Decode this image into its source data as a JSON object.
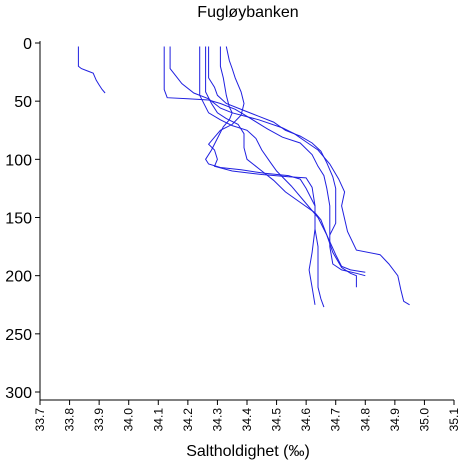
{
  "chart_data": {
    "type": "line",
    "title": "Fugløybanken",
    "xlabel": "Saltholdighet (‰)",
    "ylabel": "",
    "xlim": [
      33.7,
      35.1
    ],
    "ylim": [
      0,
      300
    ],
    "y_inverted": true,
    "x_ticks": [
      "33.7",
      "33.8",
      "33.9",
      "34.0",
      "34.1",
      "34.2",
      "34.3",
      "34.4",
      "34.5",
      "34.6",
      "34.7",
      "34.8",
      "34.9",
      "35.0",
      "35.1"
    ],
    "y_ticks": [
      "0",
      "50",
      "100",
      "150",
      "200",
      "250",
      "300"
    ],
    "line_color": "#2020e0",
    "series": [
      {
        "points": [
          [
            33.83,
            3
          ],
          [
            33.83,
            20
          ],
          [
            33.84,
            22
          ],
          [
            33.86,
            24
          ],
          [
            33.88,
            26
          ],
          [
            33.89,
            32
          ],
          [
            33.9,
            36
          ],
          [
            33.91,
            40
          ],
          [
            33.92,
            43
          ]
        ]
      },
      {
        "points": [
          [
            34.12,
            3
          ],
          [
            34.12,
            40
          ],
          [
            34.13,
            47
          ],
          [
            34.2,
            48
          ],
          [
            34.27,
            49
          ],
          [
            34.31,
            52
          ],
          [
            34.36,
            57
          ],
          [
            34.4,
            63
          ],
          [
            34.47,
            74
          ],
          [
            34.52,
            81
          ],
          [
            34.58,
            86
          ],
          [
            34.62,
            96
          ],
          [
            34.64,
            106
          ],
          [
            34.66,
            114
          ],
          [
            34.67,
            125
          ],
          [
            34.68,
            140
          ],
          [
            34.68,
            160
          ],
          [
            34.68,
            175
          ],
          [
            34.69,
            190
          ],
          [
            34.72,
            195
          ],
          [
            34.77,
            198
          ],
          [
            34.8,
            200
          ]
        ]
      },
      {
        "points": [
          [
            34.14,
            3
          ],
          [
            34.14,
            22
          ],
          [
            34.18,
            35
          ],
          [
            34.22,
            43
          ],
          [
            34.27,
            48
          ],
          [
            34.31,
            56
          ],
          [
            34.35,
            60
          ],
          [
            34.44,
            66
          ],
          [
            34.52,
            73
          ],
          [
            34.56,
            78
          ],
          [
            34.6,
            85
          ],
          [
            34.64,
            92
          ],
          [
            34.68,
            104
          ],
          [
            34.71,
            117
          ],
          [
            34.73,
            128
          ],
          [
            34.72,
            140
          ],
          [
            34.74,
            162
          ],
          [
            34.77,
            178
          ],
          [
            34.85,
            182
          ],
          [
            34.88,
            190
          ],
          [
            34.91,
            200
          ],
          [
            34.92,
            212
          ],
          [
            34.93,
            222
          ],
          [
            34.95,
            225
          ]
        ]
      },
      {
        "points": [
          [
            34.24,
            3
          ],
          [
            34.24,
            45
          ],
          [
            34.27,
            60
          ],
          [
            34.31,
            66
          ],
          [
            34.35,
            71
          ],
          [
            34.4,
            75
          ],
          [
            34.43,
            82
          ],
          [
            34.45,
            92
          ],
          [
            34.48,
            103
          ],
          [
            34.5,
            110
          ],
          [
            34.55,
            123
          ],
          [
            34.6,
            138
          ],
          [
            34.64,
            150
          ],
          [
            34.67,
            165
          ],
          [
            34.7,
            182
          ],
          [
            34.72,
            192
          ],
          [
            34.75,
            195
          ],
          [
            34.8,
            197
          ]
        ]
      },
      {
        "points": [
          [
            34.26,
            3
          ],
          [
            34.26,
            42
          ],
          [
            34.28,
            52
          ],
          [
            34.3,
            60
          ],
          [
            34.33,
            65
          ],
          [
            34.37,
            70
          ],
          [
            34.39,
            78
          ],
          [
            34.39,
            90
          ],
          [
            34.4,
            100
          ],
          [
            34.44,
            108
          ],
          [
            34.49,
            118
          ],
          [
            34.53,
            128
          ],
          [
            34.58,
            137
          ],
          [
            34.63,
            146
          ],
          [
            34.65,
            152
          ],
          [
            34.67,
            165
          ],
          [
            34.69,
            180
          ],
          [
            34.72,
            193
          ],
          [
            34.75,
            198
          ],
          [
            34.77,
            200
          ],
          [
            34.77,
            210
          ]
        ]
      },
      {
        "points": [
          [
            34.27,
            3
          ],
          [
            34.27,
            30
          ],
          [
            34.29,
            38
          ],
          [
            34.3,
            45
          ],
          [
            34.33,
            52
          ],
          [
            34.39,
            58
          ],
          [
            34.44,
            63
          ],
          [
            34.49,
            68
          ],
          [
            34.53,
            75
          ],
          [
            34.58,
            80
          ],
          [
            34.62,
            86
          ],
          [
            34.65,
            93
          ],
          [
            34.67,
            103
          ],
          [
            34.69,
            115
          ],
          [
            34.7,
            125
          ],
          [
            34.7,
            140
          ],
          [
            34.7,
            155
          ],
          [
            34.68,
            165
          ]
        ]
      },
      {
        "points": [
          [
            34.31,
            3
          ],
          [
            34.31,
            20
          ],
          [
            34.32,
            30
          ],
          [
            34.33,
            45
          ],
          [
            34.34,
            55
          ],
          [
            34.35,
            60
          ],
          [
            34.34,
            66
          ],
          [
            34.32,
            72
          ],
          [
            34.3,
            82
          ],
          [
            34.28,
            92
          ],
          [
            34.26,
            100
          ],
          [
            34.27,
            104
          ],
          [
            34.31,
            107
          ],
          [
            34.38,
            109
          ],
          [
            34.46,
            112
          ],
          [
            34.54,
            114
          ],
          [
            34.58,
            117
          ],
          [
            34.6,
            125
          ],
          [
            34.63,
            140
          ],
          [
            34.63,
            160
          ],
          [
            34.64,
            175
          ],
          [
            34.64,
            190
          ],
          [
            34.64,
            210
          ],
          [
            34.65,
            220
          ],
          [
            34.66,
            227
          ]
        ]
      },
      {
        "points": [
          [
            34.33,
            3
          ],
          [
            34.34,
            15
          ],
          [
            34.35,
            22
          ],
          [
            34.36,
            30
          ],
          [
            34.38,
            42
          ],
          [
            34.39,
            52
          ],
          [
            34.38,
            62
          ],
          [
            34.35,
            70
          ],
          [
            34.31,
            75
          ],
          [
            34.29,
            81
          ],
          [
            34.27,
            87
          ],
          [
            34.29,
            92
          ],
          [
            34.3,
            100
          ],
          [
            34.29,
            106
          ],
          [
            34.35,
            110
          ],
          [
            34.45,
            113
          ],
          [
            34.54,
            115
          ],
          [
            34.6,
            116
          ],
          [
            34.62,
            124
          ],
          [
            34.63,
            140
          ],
          [
            34.63,
            160
          ],
          [
            34.62,
            180
          ],
          [
            34.61,
            195
          ],
          [
            34.62,
            210
          ],
          [
            34.63,
            225
          ]
        ]
      }
    ]
  }
}
